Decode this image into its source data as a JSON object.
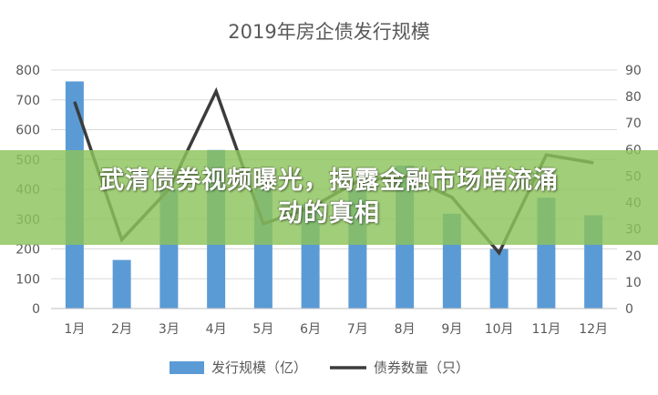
{
  "chart_data": {
    "type": "bar+line",
    "title": "2019年房企债发行规模",
    "categories": [
      "1月",
      "2月",
      "3月",
      "4月",
      "5月",
      "6月",
      "7月",
      "8月",
      "9月",
      "10月",
      "11月",
      "12月"
    ],
    "series": [
      {
        "name": "发行规模（亿）",
        "type": "bar",
        "axis": "left",
        "color": "#5b9bd5",
        "values": [
          762,
          163,
          400,
          532,
          400,
          350,
          400,
          480,
          318,
          200,
          372,
          313
        ]
      },
      {
        "name": "债券数量（只）",
        "type": "line",
        "axis": "right",
        "color": "#3c3c3c",
        "values": [
          78,
          26,
          45,
          82,
          32,
          38,
          48,
          50,
          42,
          21,
          58,
          55
        ]
      }
    ],
    "y_left": {
      "min": 0,
      "max": 800,
      "ticks": [
        0,
        100,
        200,
        300,
        400,
        500,
        600,
        700,
        800
      ]
    },
    "y_right": {
      "min": 0,
      "max": 90,
      "ticks": [
        0,
        10,
        20,
        30,
        40,
        50,
        60,
        70,
        80,
        90
      ]
    },
    "grid": true,
    "legend": "bottom"
  },
  "banner": {
    "line1": "武清债券视频曝光，揭露金融市场暗流涌",
    "line2": "动的真相"
  }
}
